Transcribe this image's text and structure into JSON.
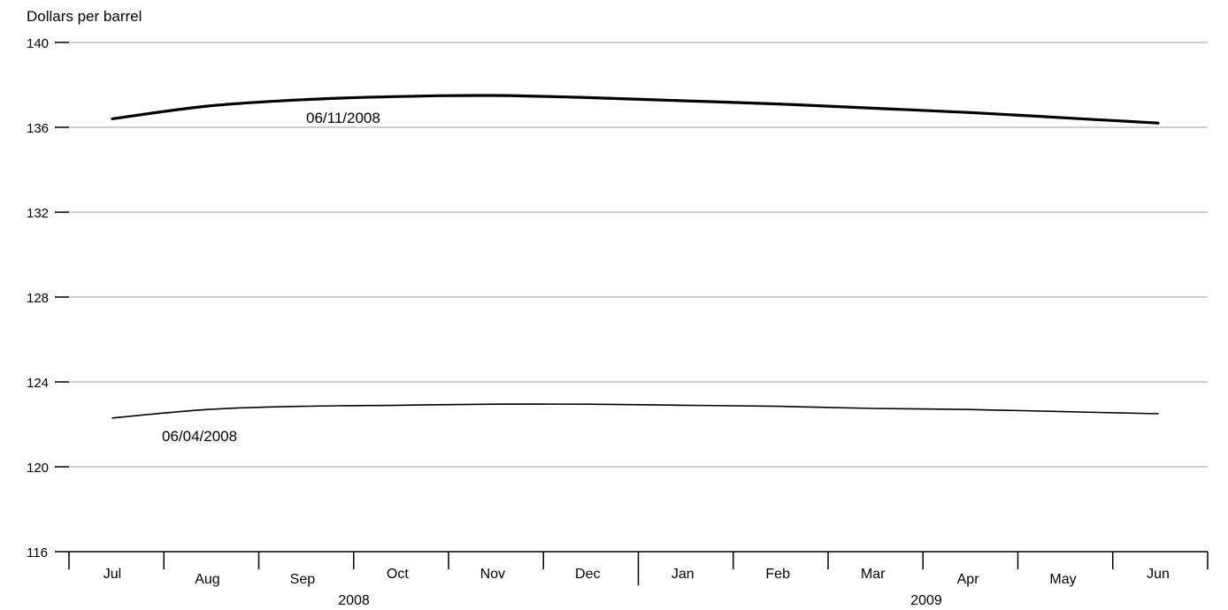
{
  "chart_data": {
    "type": "line",
    "title": "",
    "ylabel": "Dollars per barrel",
    "xlabel": "",
    "ylim": [
      116,
      140
    ],
    "yticks": [
      "116",
      "120",
      "124",
      "128",
      "132",
      "136",
      "140"
    ],
    "grid": "horizontal",
    "categories": [
      "Jul",
      "Aug",
      "Sep",
      "Oct",
      "Nov",
      "Dec",
      "Jan",
      "Feb",
      "Mar",
      "Apr",
      "May",
      "Jun"
    ],
    "year_labels": [
      "2008",
      "2009"
    ],
    "series": [
      {
        "name": "06/11/2008",
        "values": [
          136.4,
          137.0,
          137.3,
          137.45,
          137.5,
          137.4,
          137.25,
          137.1,
          136.9,
          136.7,
          136.45,
          136.2
        ]
      },
      {
        "name": "06/04/2008",
        "values": [
          122.3,
          122.7,
          122.85,
          122.9,
          122.95,
          122.95,
          122.9,
          122.85,
          122.75,
          122.7,
          122.6,
          122.5
        ]
      }
    ]
  }
}
